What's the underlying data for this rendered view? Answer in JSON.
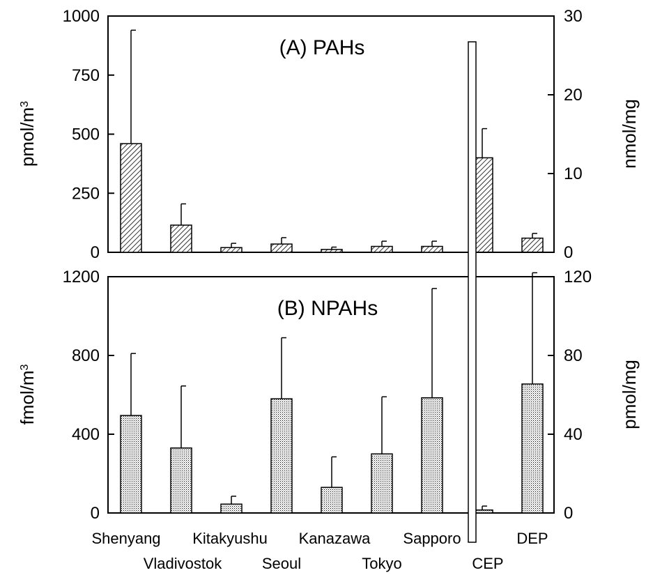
{
  "chart_data": [
    {
      "type": "bar",
      "title": "(A) PAHs",
      "categories": [
        "Shenyang",
        "Vladivostok",
        "Kitakyushu",
        "Seoul",
        "Kanazawa",
        "Tokyo",
        "Sapporo",
        "CEP",
        "DEP"
      ],
      "category_axis": "left",
      "values": [
        460,
        115,
        20,
        35,
        12,
        25,
        25,
        12,
        1.8
      ],
      "error_upper": [
        940,
        205,
        38,
        62,
        22,
        47,
        47,
        15.7,
        2.4
      ],
      "ylabel_left": "pmol/m3",
      "ylim_left": [
        0,
        1000
      ],
      "yticks_left": [
        0,
        250,
        500,
        750,
        1000
      ],
      "ylabel_right": "nmol/mg",
      "ylim_right": [
        0,
        30
      ],
      "yticks_right": [
        0,
        10,
        20,
        30
      ],
      "right_axis_categories": [
        "CEP",
        "DEP"
      ],
      "fill_pattern": "diagonal-hatch",
      "grid": false
    },
    {
      "type": "bar",
      "title": "(B) NPAHs",
      "categories": [
        "Shenyang",
        "Vladivostok",
        "Kitakyushu",
        "Seoul",
        "Kanazawa",
        "Tokyo",
        "Sapporo",
        "CEP",
        "DEP"
      ],
      "values": [
        495,
        330,
        45,
        580,
        130,
        300,
        585,
        1.5,
        65.5
      ],
      "error_upper": [
        810,
        645,
        85,
        890,
        285,
        590,
        1140,
        3.5,
        122
      ],
      "ylabel_left": "fmol/m3",
      "ylim_left": [
        0,
        1200
      ],
      "yticks_left": [
        0,
        400,
        800,
        1200
      ],
      "ylabel_right": "pmol/mg",
      "ylim_right": [
        0,
        120
      ],
      "yticks_right": [
        0,
        40,
        80,
        120
      ],
      "right_axis_categories": [
        "CEP",
        "DEP"
      ],
      "fill_pattern": "dots",
      "grid": false
    }
  ]
}
